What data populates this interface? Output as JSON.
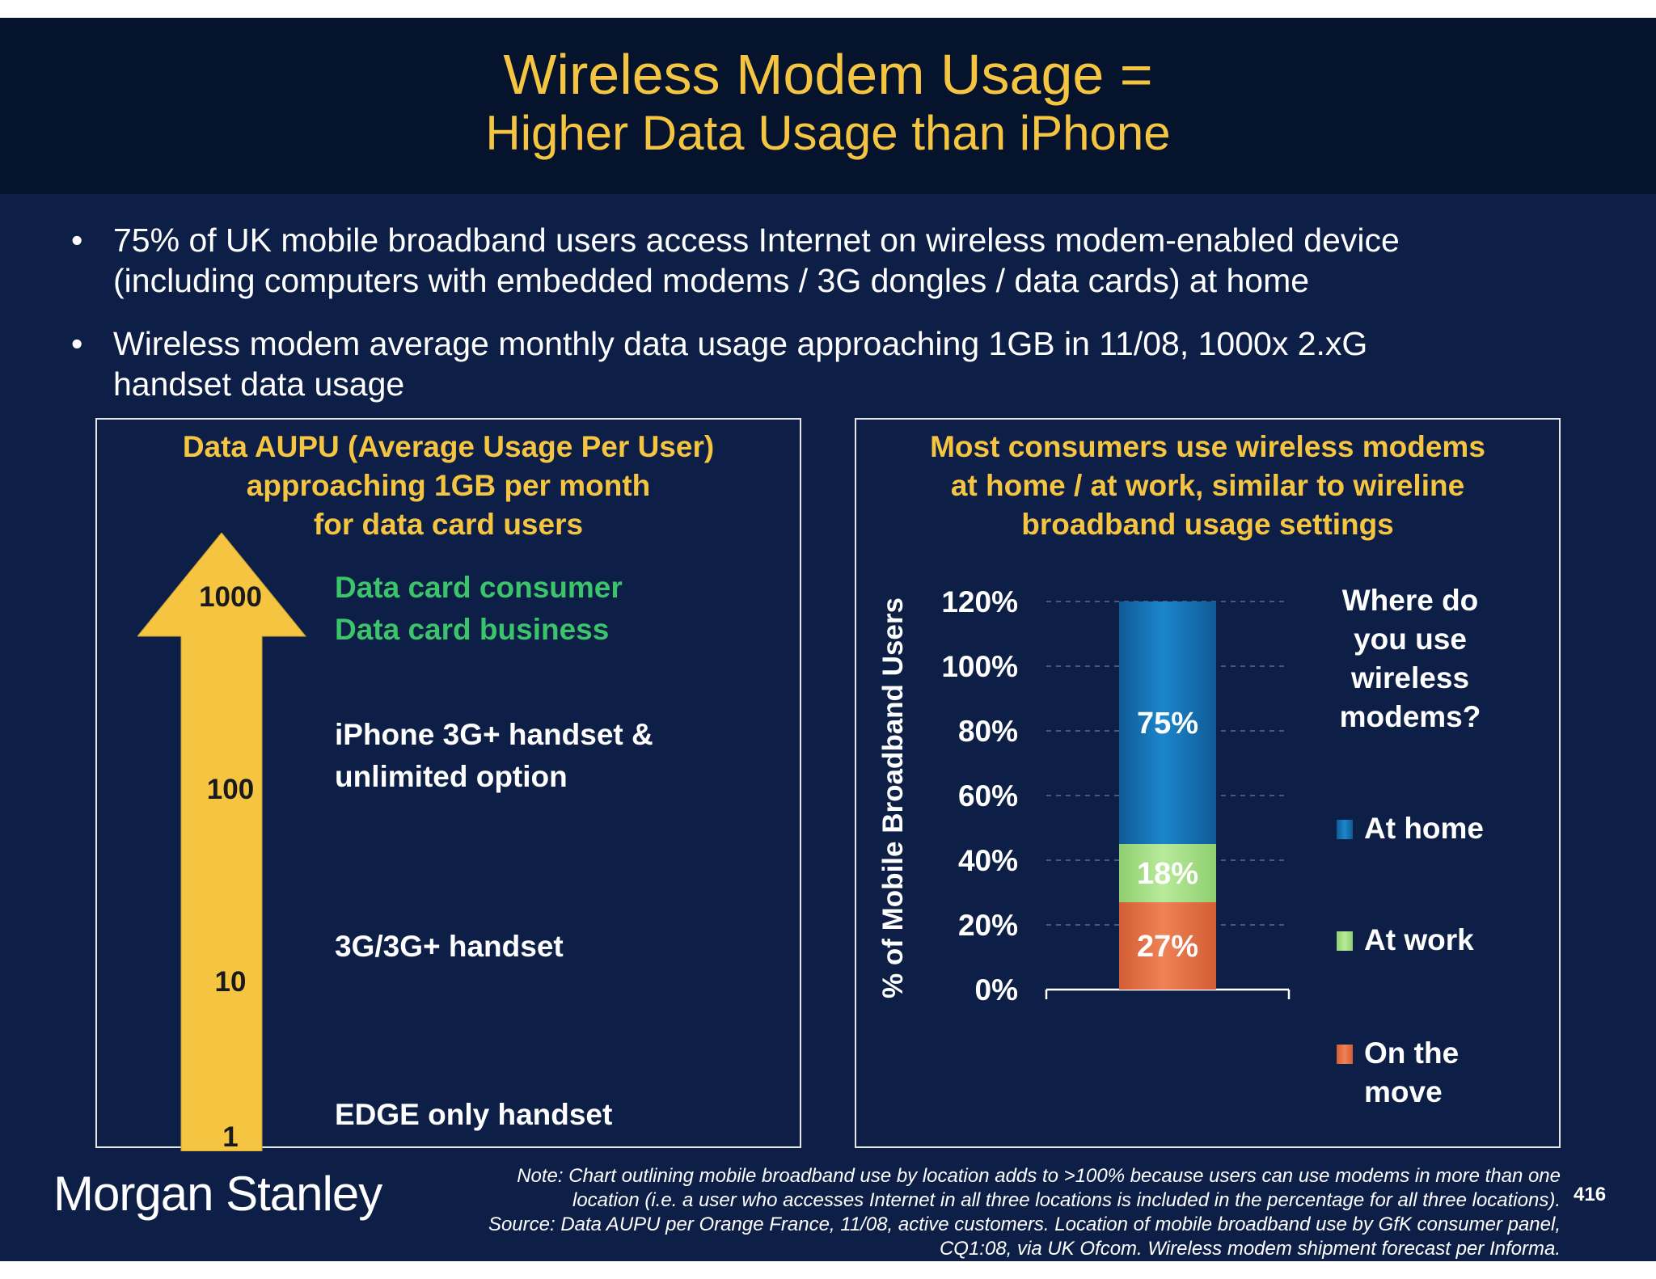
{
  "header": {
    "title_line1": "Wireless Modem Usage =",
    "title_line2": "Higher Data Usage than iPhone"
  },
  "bullets": [
    {
      "line1": "75% of UK mobile broadband users access Internet on wireless modem-enabled device",
      "line2": "(including computers with embedded modems / 3G dongles / data cards) at home"
    },
    {
      "line1": "Wireless modem average monthly data usage approaching 1GB in 11/08, 1000x 2.xG",
      "line2": "handset data usage"
    }
  ],
  "left_panel": {
    "title_lines": [
      "Data AUPU (Average Usage Per User)",
      "approaching 1GB per month",
      "for data card users"
    ],
    "arrow_color": "#f5c542",
    "scale_labels": [
      "1000",
      "100",
      "10",
      "1"
    ],
    "levels": [
      {
        "lines": [
          "Data card consumer",
          "Data card business"
        ],
        "color": "#3cc46a"
      },
      {
        "lines": [
          "iPhone 3G+ handset &",
          "unlimited option"
        ],
        "color": "#ffffff"
      },
      {
        "lines": [
          "3G/3G+ handset"
        ],
        "color": "#ffffff"
      },
      {
        "lines": [
          "EDGE only handset"
        ],
        "color": "#ffffff"
      }
    ]
  },
  "right_panel": {
    "title_lines": [
      "Most consumers use wireless modems",
      "at home / at work, similar to wireline",
      "broadband usage settings"
    ],
    "legend_title_lines": [
      "Where do",
      "you use",
      "wireless",
      "modems?"
    ],
    "legend": [
      {
        "lines": [
          "At home"
        ],
        "color": "#1c7fc4"
      },
      {
        "lines": [
          "At work"
        ],
        "color": "#a9e08a"
      },
      {
        "lines": [
          "On the",
          "move"
        ],
        "color": "#e8744a"
      }
    ]
  },
  "chart_data": {
    "type": "bar",
    "stacked": true,
    "ylabel": "% of Mobile Broadband Users",
    "ylim": [
      0,
      120
    ],
    "yticks": [
      "0%",
      "20%",
      "40%",
      "60%",
      "80%",
      "100%",
      "120%"
    ],
    "grid": true,
    "series": [
      {
        "name": "On the move",
        "values": [
          27
        ],
        "label": "27%",
        "color": "#e8744a"
      },
      {
        "name": "At work",
        "values": [
          18
        ],
        "label": "18%",
        "color": "#a9e08a"
      },
      {
        "name": "At home",
        "values": [
          75
        ],
        "label": "75%",
        "color": "#1c7fc4"
      }
    ]
  },
  "footer": {
    "logo": "Morgan Stanley",
    "note_lines": [
      "Note: Chart outlining mobile broadband use by location adds to >100% because users can use modems in more than one",
      "location (i.e. a user who accesses Internet in all three locations is included in the percentage for all three locations).",
      "Source: Data AUPU per Orange France, 11/08, active customers. Location of mobile broadband use by GfK consumer panel,",
      "CQ1:08, via UK Ofcom. Wireless modem shipment forecast per Informa."
    ],
    "page_number": "416"
  }
}
